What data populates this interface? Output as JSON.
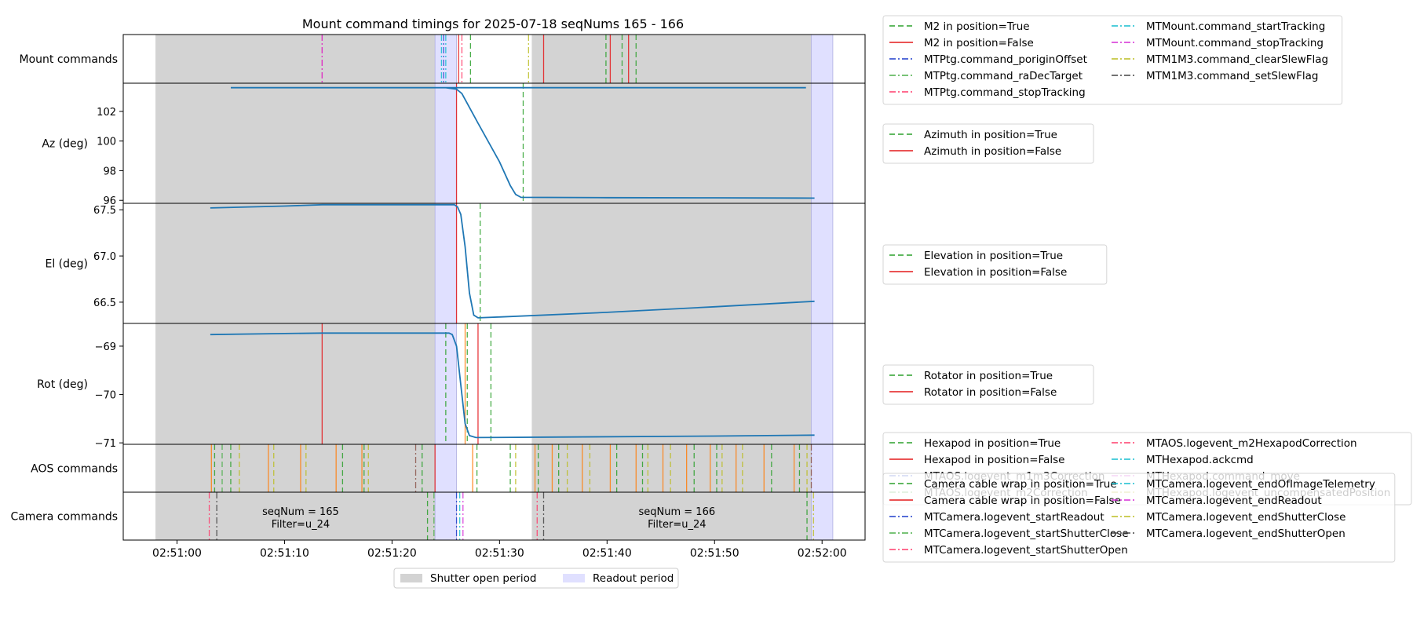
{
  "title": "Mount command timings for 2025-07-18 seqNums 165 - 166",
  "x_ticks": [
    "02:51:00",
    "02:51:10",
    "02:51:20",
    "02:51:30",
    "02:51:40",
    "02:51:50",
    "02:52:00"
  ],
  "colors": {
    "green": "#2ca02c",
    "red": "#e41a1c",
    "blue": "#1f3dcc",
    "olive_green": "#4daf4a",
    "pink": "#ff3b6b",
    "cyan": "#17becf",
    "magenta": "#d62fd6",
    "yellow": "#bcbd22",
    "gray": "#444444",
    "orange": "#ff7f0e",
    "brown": "#8c564b",
    "line": "#1f77b4",
    "shutter": "#d3d3d3",
    "readout": "#e0e0ff"
  },
  "chart_data": {
    "type": "line",
    "title": "Mount command timings for 2025-07-18 seqNums 165 - 166",
    "x_range": [
      "02:50:55",
      "02:52:04"
    ],
    "shutter_open_periods": [
      [
        "02:50:58",
        "02:51:24"
      ],
      [
        "02:51:33",
        "02:51:59"
      ]
    ],
    "readout_periods": [
      [
        "02:51:24",
        "02:51:26"
      ],
      [
        "02:51:59",
        "02:52:01"
      ]
    ],
    "panels": [
      {
        "key": "mount",
        "ylabel": "Mount commands",
        "yticks": [],
        "events": [
          {
            "t": 13.5,
            "color": "pink",
            "dash": "dashdot"
          },
          {
            "t": 13.5,
            "color": "magenta",
            "dash": "dashdot"
          },
          {
            "t": 24.6,
            "color": "cyan",
            "dash": "dashdot"
          },
          {
            "t": 24.8,
            "color": "blue",
            "dash": "dashdot"
          },
          {
            "t": 25.0,
            "color": "cyan",
            "dash": "dashdot"
          },
          {
            "t": 26.2,
            "color": "red",
            "dash": "solid"
          },
          {
            "t": 26.5,
            "color": "pink",
            "dash": "dashdot"
          },
          {
            "t": 27.3,
            "color": "green",
            "dash": "dashed"
          },
          {
            "t": 32.7,
            "color": "yellow",
            "dash": "dashdot"
          },
          {
            "t": 34.1,
            "color": "red",
            "dash": "solid"
          },
          {
            "t": 39.9,
            "color": "green",
            "dash": "dashed"
          },
          {
            "t": 40.3,
            "color": "red",
            "dash": "solid"
          },
          {
            "t": 41.4,
            "color": "green",
            "dash": "dashed"
          },
          {
            "t": 42.0,
            "color": "red",
            "dash": "solid"
          },
          {
            "t": 42.7,
            "color": "green",
            "dash": "dashed"
          }
        ]
      },
      {
        "key": "az",
        "ylabel": "Az (deg)",
        "ylim": [
          95.8,
          103.9
        ],
        "yticks": [
          96,
          98,
          100,
          102
        ],
        "series": [
          [
            58.5,
            103.6
          ],
          [
            65,
            103.6
          ],
          [
            70,
            103.6
          ],
          [
            75,
            103.6
          ],
          [
            80,
            103.6
          ],
          [
            85,
            103.6
          ],
          [
            86,
            103.5
          ],
          [
            86.5,
            103.2
          ],
          [
            88,
            101.2
          ],
          [
            90,
            98.6
          ],
          [
            91,
            97.0
          ],
          [
            91.5,
            96.4
          ],
          [
            92,
            96.2
          ],
          [
            100,
            96.18
          ],
          [
            110,
            96.17
          ],
          [
            119.3,
            96.15
          ]
        ],
        "events": [
          {
            "t": 26.0,
            "color": "red",
            "dash": "solid"
          },
          {
            "t": 32.2,
            "color": "green",
            "dash": "dashed"
          }
        ]
      },
      {
        "key": "el",
        "ylabel": "El (deg)",
        "ylim": [
          66.27,
          67.57
        ],
        "yticks": [
          66.5,
          67.0,
          67.5
        ],
        "series": [
          [
            3.1,
            67.52
          ],
          [
            10,
            67.54
          ],
          [
            13.5,
            67.555
          ],
          [
            20,
            67.555
          ],
          [
            25.8,
            67.555
          ],
          [
            26.1,
            67.53
          ],
          [
            26.4,
            67.45
          ],
          [
            26.8,
            67.1
          ],
          [
            27.2,
            66.6
          ],
          [
            27.6,
            66.36
          ],
          [
            28.0,
            66.33
          ],
          [
            30,
            66.34
          ],
          [
            40,
            66.39
          ],
          [
            50,
            66.45
          ],
          [
            59.3,
            66.51
          ]
        ],
        "events": [
          {
            "t": 26.0,
            "color": "red",
            "dash": "solid"
          },
          {
            "t": 28.2,
            "color": "green",
            "dash": "dashed"
          }
        ]
      },
      {
        "key": "rot",
        "ylabel": "Rot (deg)",
        "ylim": [
          -71.03,
          -68.53
        ],
        "yticks": [
          -69,
          -70,
          -71
        ],
        "series": [
          [
            3.1,
            -68.76
          ],
          [
            10,
            -68.74
          ],
          [
            13.5,
            -68.73
          ],
          [
            20,
            -68.73
          ],
          [
            25.3,
            -68.73
          ],
          [
            25.6,
            -68.76
          ],
          [
            26.0,
            -69.0
          ],
          [
            26.4,
            -69.8
          ],
          [
            26.8,
            -70.6
          ],
          [
            27.2,
            -70.85
          ],
          [
            27.8,
            -70.89
          ],
          [
            35,
            -70.88
          ],
          [
            50,
            -70.86
          ],
          [
            59.3,
            -70.84
          ]
        ],
        "events": [
          {
            "t": 13.5,
            "color": "red",
            "dash": "solid"
          },
          {
            "t": 25.0,
            "color": "green",
            "dash": "dashed"
          },
          {
            "t": 26.8,
            "color": "orange",
            "dash": "solid"
          },
          {
            "t": 27.0,
            "color": "green",
            "dash": "dashed"
          },
          {
            "t": 28.0,
            "color": "red",
            "dash": "solid"
          },
          {
            "t": 29.2,
            "color": "green",
            "dash": "dashed"
          }
        ]
      },
      {
        "key": "aos",
        "ylabel": "AOS commands",
        "yticks": [],
        "events": [
          {
            "t": 3.2,
            "color": "orange",
            "dash": "solid"
          },
          {
            "t": 3.5,
            "color": "green",
            "dash": "dashed"
          },
          {
            "t": 4.2,
            "color": "olive_green",
            "dash": "dashed"
          },
          {
            "t": 5.0,
            "color": "green",
            "dash": "dashed"
          },
          {
            "t": 5.8,
            "color": "yellow",
            "dash": "dashed"
          },
          {
            "t": 8.5,
            "color": "orange",
            "dash": "solid"
          },
          {
            "t": 9.0,
            "color": "yellow",
            "dash": "dashed"
          },
          {
            "t": 11.5,
            "color": "orange",
            "dash": "solid"
          },
          {
            "t": 12.0,
            "color": "yellow",
            "dash": "dashed"
          },
          {
            "t": 14.8,
            "color": "orange",
            "dash": "solid"
          },
          {
            "t": 15.4,
            "color": "green",
            "dash": "dashed"
          },
          {
            "t": 17.2,
            "color": "orange",
            "dash": "solid"
          },
          {
            "t": 17.4,
            "color": "green",
            "dash": "dashed"
          },
          {
            "t": 17.8,
            "color": "yellow",
            "dash": "dashed"
          },
          {
            "t": 22.2,
            "color": "brown",
            "dash": "dashdot"
          },
          {
            "t": 22.8,
            "color": "green",
            "dash": "dashed"
          },
          {
            "t": 24.0,
            "color": "red",
            "dash": "solid"
          },
          {
            "t": 27.5,
            "color": "orange",
            "dash": "solid"
          },
          {
            "t": 27.9,
            "color": "green",
            "dash": "dashed"
          },
          {
            "t": 31.0,
            "color": "green",
            "dash": "dashed"
          },
          {
            "t": 31.5,
            "color": "yellow",
            "dash": "dashed"
          },
          {
            "t": 33.3,
            "color": "orange",
            "dash": "solid"
          },
          {
            "t": 33.6,
            "color": "green",
            "dash": "dashed"
          },
          {
            "t": 34.9,
            "color": "orange",
            "dash": "solid"
          },
          {
            "t": 35.5,
            "color": "green",
            "dash": "dashed"
          },
          {
            "t": 36.3,
            "color": "yellow",
            "dash": "dashed"
          },
          {
            "t": 37.7,
            "color": "orange",
            "dash": "solid"
          },
          {
            "t": 38.4,
            "color": "yellow",
            "dash": "dashed"
          },
          {
            "t": 40.3,
            "color": "orange",
            "dash": "solid"
          },
          {
            "t": 40.9,
            "color": "green",
            "dash": "dashed"
          },
          {
            "t": 42.7,
            "color": "orange",
            "dash": "solid"
          },
          {
            "t": 43.3,
            "color": "green",
            "dash": "dashed"
          },
          {
            "t": 43.8,
            "color": "yellow",
            "dash": "dashed"
          },
          {
            "t": 45.2,
            "color": "orange",
            "dash": "solid"
          },
          {
            "t": 45.9,
            "color": "yellow",
            "dash": "dashed"
          },
          {
            "t": 47.4,
            "color": "orange",
            "dash": "solid"
          },
          {
            "t": 48.1,
            "color": "green",
            "dash": "dashed"
          },
          {
            "t": 49.6,
            "color": "orange",
            "dash": "solid"
          },
          {
            "t": 50.2,
            "color": "green",
            "dash": "dashed"
          },
          {
            "t": 50.7,
            "color": "yellow",
            "dash": "dashed"
          },
          {
            "t": 52.0,
            "color": "orange",
            "dash": "solid"
          },
          {
            "t": 52.6,
            "color": "yellow",
            "dash": "dashed"
          },
          {
            "t": 54.6,
            "color": "orange",
            "dash": "solid"
          },
          {
            "t": 55.3,
            "color": "green",
            "dash": "dashed"
          },
          {
            "t": 57.4,
            "color": "orange",
            "dash": "solid"
          },
          {
            "t": 57.9,
            "color": "green",
            "dash": "dashed"
          },
          {
            "t": 58.6,
            "color": "yellow",
            "dash": "dashed"
          },
          {
            "t": 59.0,
            "color": "brown",
            "dash": "dashdot"
          }
        ]
      },
      {
        "key": "camera",
        "ylabel": "Camera commands",
        "yticks": [],
        "events": [
          {
            "t": 3.0,
            "color": "pink",
            "dash": "dashdot"
          },
          {
            "t": 3.7,
            "color": "gray",
            "dash": "dashdot"
          },
          {
            "t": 23.3,
            "color": "green",
            "dash": "dashed"
          },
          {
            "t": 23.9,
            "color": "olive_green",
            "dash": "dashdot"
          },
          {
            "t": 26.0,
            "color": "blue",
            "dash": "dashdot"
          },
          {
            "t": 26.3,
            "color": "cyan",
            "dash": "dashdot"
          },
          {
            "t": 26.6,
            "color": "magenta",
            "dash": "dashdot"
          },
          {
            "t": 33.5,
            "color": "pink",
            "dash": "dashdot"
          },
          {
            "t": 34.1,
            "color": "gray",
            "dash": "dashdot"
          },
          {
            "t": 58.6,
            "color": "green",
            "dash": "dashed"
          },
          {
            "t": 59.2,
            "color": "yellow",
            "dash": "dashdot"
          }
        ],
        "annotations": [
          {
            "t": 11.5,
            "line1": "seqNum = 165",
            "line2": "Filter=u_24"
          },
          {
            "t": 46.5,
            "line1": "seqNum = 166",
            "line2": "Filter=u_24"
          }
        ]
      }
    ],
    "legends": {
      "mount": {
        "cols": 2,
        "entries": [
          {
            "label": "M2 in position=True",
            "color": "green",
            "dash": "dashed"
          },
          {
            "label": "M2 in position=False",
            "color": "red",
            "dash": "solid"
          },
          {
            "label": "MTPtg.command_poriginOffset",
            "color": "blue",
            "dash": "dashdot"
          },
          {
            "label": "MTPtg.command_raDecTarget",
            "color": "olive_green",
            "dash": "dashdot"
          },
          {
            "label": "MTPtg.command_stopTracking",
            "color": "pink",
            "dash": "dashdot"
          },
          {
            "label": "MTMount.command_startTracking",
            "color": "cyan",
            "dash": "dashdot"
          },
          {
            "label": "MTMount.command_stopTracking",
            "color": "magenta",
            "dash": "dashdot"
          },
          {
            "label": "MTM1M3.command_clearSlewFlag",
            "color": "yellow",
            "dash": "dashdot"
          },
          {
            "label": "MTM1M3.command_setSlewFlag",
            "color": "gray",
            "dash": "dashdot"
          }
        ]
      },
      "az": {
        "cols": 1,
        "entries": [
          {
            "label": "Azimuth in position=True",
            "color": "green",
            "dash": "dashed"
          },
          {
            "label": "Azimuth in position=False",
            "color": "red",
            "dash": "solid"
          }
        ]
      },
      "el": {
        "cols": 1,
        "entries": [
          {
            "label": "Elevation in position=True",
            "color": "green",
            "dash": "dashed"
          },
          {
            "label": "Elevation in position=False",
            "color": "red",
            "dash": "solid"
          }
        ]
      },
      "rot": {
        "cols": 1,
        "entries": [
          {
            "label": "Rotator in position=True",
            "color": "green",
            "dash": "dashed"
          },
          {
            "label": "Rotator in position=False",
            "color": "red",
            "dash": "solid"
          }
        ]
      },
      "aos": {
        "cols": 2,
        "entries": [
          {
            "label": "Hexapod in position=True",
            "color": "green",
            "dash": "dashed"
          },
          {
            "label": "Hexapod in position=False",
            "color": "red",
            "dash": "solid"
          },
          {
            "label": "MTAOS.logevent_m1m3Correction",
            "color": "blue",
            "dash": "dashdot"
          },
          {
            "label": "MTAOS.logevent_m2Correction",
            "color": "olive_green",
            "dash": "dashdot"
          },
          {
            "label": "MTAOS.logevent_m2HexapodCorrection",
            "color": "pink",
            "dash": "dashdot"
          },
          {
            "label": "MTHexapod.ackcmd",
            "color": "cyan",
            "dash": "dashdot"
          },
          {
            "label": "MTHexapod.command_move",
            "color": "magenta",
            "dash": "dashdot"
          },
          {
            "label": "MTHexapod.logevent_uncompensatedPosition",
            "color": "yellow",
            "dash": "dashdot"
          }
        ]
      },
      "camera": {
        "cols": 2,
        "entries": [
          {
            "label": "Camera cable wrap in position=True",
            "color": "green",
            "dash": "dashed"
          },
          {
            "label": "Camera cable wrap in position=False",
            "color": "red",
            "dash": "solid"
          },
          {
            "label": "MTCamera.logevent_startReadout",
            "color": "blue",
            "dash": "dashdot"
          },
          {
            "label": "MTCamera.logevent_startShutterClose",
            "color": "olive_green",
            "dash": "dashdot"
          },
          {
            "label": "MTCamera.logevent_startShutterOpen",
            "color": "pink",
            "dash": "dashdot"
          },
          {
            "label": "MTCamera.logevent_endOfImageTelemetry",
            "color": "cyan",
            "dash": "dashdot"
          },
          {
            "label": "MTCamera.logevent_endReadout",
            "color": "magenta",
            "dash": "dashdot"
          },
          {
            "label": "MTCamera.logevent_endShutterClose",
            "color": "yellow",
            "dash": "dashdot"
          },
          {
            "label": "MTCamera.logevent_endShutterOpen",
            "color": "gray",
            "dash": "dashdot"
          }
        ]
      }
    },
    "bottom_legend": [
      {
        "label": "Shutter open period",
        "color": "shutter"
      },
      {
        "label": "Readout period",
        "color": "readout"
      }
    ]
  }
}
